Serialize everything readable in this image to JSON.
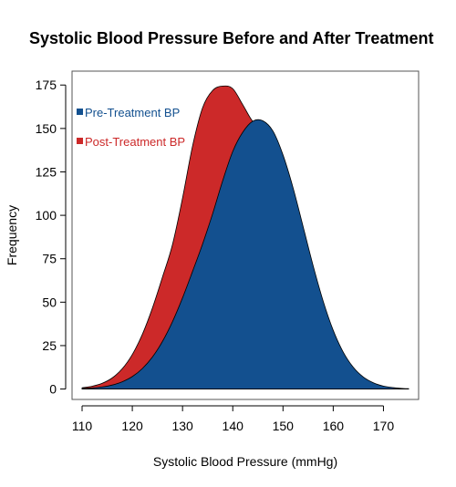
{
  "chart_data": {
    "type": "area",
    "title": "Systolic Blood Pressure Before and After Treatment",
    "xlabel": "Systolic Blood Pressure (mmHg)",
    "ylabel": "Frequency",
    "xlim": [
      108,
      177
    ],
    "ylim": [
      -6,
      183
    ],
    "xticks": [
      110,
      120,
      130,
      140,
      150,
      160,
      170
    ],
    "yticks": [
      0,
      25,
      50,
      75,
      100,
      125,
      150,
      175
    ],
    "grid": false,
    "legend_position": "top-left",
    "series": [
      {
        "name": "Post-Treatment BP",
        "color": "#cc2929",
        "x": [
          110,
          112,
          114,
          116,
          118,
          120,
          122,
          124,
          126,
          128,
          130,
          132,
          134,
          136,
          138,
          140,
          142,
          144,
          146,
          148,
          150,
          152,
          154,
          156,
          158,
          160,
          162,
          164,
          166,
          168,
          170,
          172,
          174,
          175
        ],
        "values": [
          0.7,
          1.6,
          3.3,
          6.4,
          11.7,
          19.9,
          31.5,
          46.6,
          64.4,
          83.2,
          110.0,
          140.0,
          162.0,
          171.9,
          174.4,
          172.9,
          163.6,
          154.0,
          150.2,
          139.8,
          121.7,
          99.0,
          75.3,
          53.5,
          35.6,
          22.1,
          12.8,
          6.9,
          3.5,
          1.7,
          0.7,
          0.3,
          0.1,
          0.05
        ]
      },
      {
        "name": "Pre-Treatment BP",
        "color": "#13508f",
        "x": [
          110,
          112,
          114,
          116,
          118,
          120,
          122,
          124,
          126,
          128,
          130,
          132,
          134,
          136,
          138,
          140,
          142,
          144,
          146,
          148,
          150,
          152,
          154,
          156,
          158,
          160,
          162,
          164,
          166,
          168,
          170,
          172,
          174,
          175
        ],
        "values": [
          0.3,
          0.6,
          1.2,
          2.3,
          4.2,
          7.2,
          11.8,
          18.4,
          27.4,
          38.8,
          52.5,
          67.8,
          83.6,
          101.0,
          120.0,
          136.8,
          147.9,
          154.2,
          154.4,
          148.5,
          134.8,
          115.9,
          93.6,
          71.0,
          50.6,
          33.8,
          21.2,
          12.5,
          6.9,
          3.6,
          1.7,
          0.8,
          0.3,
          0.2
        ]
      }
    ]
  }
}
